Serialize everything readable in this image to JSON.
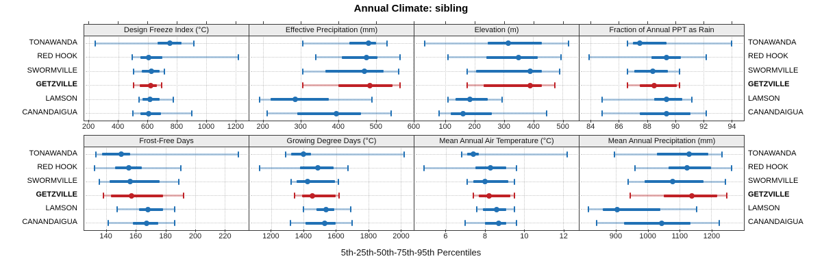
{
  "title": "Annual Climate: sibling",
  "caption": "5th-25th-50th-75th-95th Percentiles",
  "sites": [
    "TONAWANDA",
    "RED HOOK",
    "SWORMVILLE",
    "GETZVILLE",
    "LAMSON",
    "CANANDAIGUA"
  ],
  "highlight_site": "GETZVILLE",
  "percentile_labels": [
    "p5",
    "p25",
    "p50",
    "p75",
    "p95"
  ],
  "colors": {
    "series_blue": "#2171b5",
    "highlight_red": "#c02126",
    "strip_bg": "#ececec",
    "panel_border": "#3c3c3c",
    "gridline": "#c6c6c6"
  },
  "chart_data": [
    {
      "type": "dotplot-interval",
      "title": "Design Freeze Index (°C)",
      "xlim": [
        167,
        1290
      ],
      "ticks": [
        200,
        400,
        600,
        800,
        1000,
        1200
      ],
      "series": [
        {
          "name": "TONAWANDA",
          "percentiles": [
            240,
            670,
            750,
            830,
            915
          ]
        },
        {
          "name": "RED HOOK",
          "percentiles": [
            495,
            550,
            605,
            700,
            1220
          ]
        },
        {
          "name": "SWORMVILLE",
          "percentiles": [
            505,
            560,
            625,
            680,
            715
          ]
        },
        {
          "name": "GETZVILLE",
          "percentiles": [
            505,
            545,
            620,
            665,
            695
          ]
        },
        {
          "name": "LAMSON",
          "percentiles": [
            540,
            565,
            615,
            680,
            775
          ]
        },
        {
          "name": "CANANDAIGUA",
          "percentiles": [
            500,
            550,
            605,
            690,
            900
          ]
        }
      ]
    },
    {
      "type": "dotplot-interval",
      "title": "Effective Precipitation (mm)",
      "xlim": [
        163,
        601
      ],
      "ticks": [
        200,
        300,
        400,
        500,
        600
      ],
      "series": [
        {
          "name": "TONAWANDA",
          "percentiles": [
            305,
            430,
            480,
            500,
            530
          ]
        },
        {
          "name": "RED HOOK",
          "percentiles": [
            340,
            410,
            475,
            505,
            565
          ]
        },
        {
          "name": "SWORMVILLE",
          "percentiles": [
            305,
            365,
            470,
            520,
            560
          ]
        },
        {
          "name": "GETZVILLE",
          "percentiles": [
            305,
            400,
            485,
            545,
            565
          ]
        },
        {
          "name": "LAMSON",
          "percentiles": [
            190,
            220,
            285,
            375,
            490
          ]
        },
        {
          "name": "CANANDAIGUA",
          "percentiles": [
            210,
            290,
            395,
            460,
            540
          ]
        }
      ]
    },
    {
      "type": "dotplot-interval",
      "title": "Elevation (m)",
      "xlim": [
        -5,
        556
      ],
      "ticks": [
        100,
        200,
        300,
        400,
        500
      ],
      "series": [
        {
          "name": "TONAWANDA",
          "percentiles": [
            30,
            245,
            315,
            430,
            520
          ]
        },
        {
          "name": "RED HOOK",
          "percentiles": [
            110,
            240,
            350,
            415,
            495
          ]
        },
        {
          "name": "SWORMVILLE",
          "percentiles": [
            175,
            205,
            390,
            430,
            490
          ]
        },
        {
          "name": "GETZVILLE",
          "percentiles": [
            175,
            230,
            390,
            430,
            475
          ]
        },
        {
          "name": "LAMSON",
          "percentiles": [
            110,
            135,
            185,
            245,
            295
          ]
        },
        {
          "name": "CANANDAIGUA",
          "percentiles": [
            80,
            120,
            160,
            260,
            445
          ]
        }
      ]
    },
    {
      "type": "dotplot-interval",
      "title": "Fraction of Annual PPT as Rain",
      "xlim": [
        83.2,
        94.9
      ],
      "ticks": [
        84,
        86,
        88,
        90,
        92,
        94
      ],
      "series": [
        {
          "name": "TONAWANDA",
          "percentiles": [
            86.6,
            87.0,
            87.5,
            89.4,
            94.0
          ]
        },
        {
          "name": "RED HOOK",
          "percentiles": [
            83.9,
            88.3,
            89.4,
            90.4,
            92.2
          ]
        },
        {
          "name": "SWORMVILLE",
          "percentiles": [
            86.6,
            87.1,
            88.4,
            89.5,
            90.3
          ]
        },
        {
          "name": "GETZVILLE",
          "percentiles": [
            86.6,
            87.5,
            88.5,
            90.1,
            90.3
          ]
        },
        {
          "name": "LAMSON",
          "percentiles": [
            84.8,
            88.5,
            89.4,
            90.5,
            91.2
          ]
        },
        {
          "name": "CANANDAIGUA",
          "percentiles": [
            84.8,
            87.5,
            89.4,
            91.1,
            92.2
          ]
        }
      ]
    },
    {
      "type": "dotplot-interval",
      "title": "Frost-Free Days",
      "xlim": [
        125,
        236
      ],
      "ticks": [
        140,
        160,
        180,
        200,
        220
      ],
      "series": [
        {
          "name": "TONAWANDA",
          "percentiles": [
            133,
            137,
            150,
            156,
            229
          ]
        },
        {
          "name": "RED HOOK",
          "percentiles": [
            132,
            146,
            155,
            164,
            190
          ]
        },
        {
          "name": "SWORMVILLE",
          "percentiles": [
            135,
            142,
            156,
            176,
            189
          ]
        },
        {
          "name": "GETZVILLE",
          "percentiles": [
            138,
            143,
            157,
            178,
            192
          ]
        },
        {
          "name": "LAMSON",
          "percentiles": [
            147,
            162,
            168,
            178,
            186
          ]
        },
        {
          "name": "CANANDAIGUA",
          "percentiles": [
            141,
            158,
            167,
            175,
            186
          ]
        }
      ]
    },
    {
      "type": "dotplot-interval",
      "title": "Growing Degree Days (°C)",
      "xlim": [
        1065,
        2080
      ],
      "ticks": [
        1200,
        1400,
        1600,
        1800,
        2000
      ],
      "series": [
        {
          "name": "TONAWANDA",
          "percentiles": [
            1290,
            1325,
            1400,
            1445,
            2020
          ]
        },
        {
          "name": "RED HOOK",
          "percentiles": [
            1130,
            1380,
            1490,
            1585,
            1675
          ]
        },
        {
          "name": "SWORMVILLE",
          "percentiles": [
            1325,
            1355,
            1425,
            1595,
            1615
          ]
        },
        {
          "name": "GETZVILLE",
          "percentiles": [
            1345,
            1390,
            1455,
            1600,
            1620
          ]
        },
        {
          "name": "LAMSON",
          "percentiles": [
            1400,
            1480,
            1540,
            1590,
            1690
          ]
        },
        {
          "name": "CANANDAIGUA",
          "percentiles": [
            1320,
            1410,
            1530,
            1600,
            1700
          ]
        }
      ]
    },
    {
      "type": "dotplot-interval",
      "title": "Mean Annual Air Temperature (°C)",
      "xlim": [
        4.4,
        12.8
      ],
      "ticks": [
        6,
        8,
        10,
        12
      ],
      "series": [
        {
          "name": "TONAWANDA",
          "percentiles": [
            6.8,
            7.1,
            7.4,
            7.7,
            12.2
          ]
        },
        {
          "name": "RED HOOK",
          "percentiles": [
            4.9,
            7.5,
            8.3,
            9.1,
            9.6
          ]
        },
        {
          "name": "SWORMVILLE",
          "percentiles": [
            7.1,
            7.4,
            8.0,
            9.2,
            9.5
          ]
        },
        {
          "name": "GETZVILLE",
          "percentiles": [
            7.4,
            7.7,
            8.2,
            9.3,
            9.5
          ]
        },
        {
          "name": "LAMSON",
          "percentiles": [
            7.6,
            7.9,
            8.6,
            9.1,
            9.5
          ]
        },
        {
          "name": "CANANDAIGUA",
          "percentiles": [
            7.0,
            8.0,
            8.7,
            9.1,
            9.6
          ]
        }
      ]
    },
    {
      "type": "dotplot-interval",
      "title": "Mean Annual Precipitation (mm)",
      "xlim": [
        786,
        1303
      ],
      "ticks": [
        900,
        1000,
        1100,
        1200
      ],
      "series": [
        {
          "name": "TONAWANDA",
          "percentiles": [
            895,
            1030,
            1130,
            1190,
            1235
          ]
        },
        {
          "name": "RED HOOK",
          "percentiles": [
            960,
            1065,
            1125,
            1200,
            1265
          ]
        },
        {
          "name": "SWORMVILLE",
          "percentiles": [
            940,
            990,
            1080,
            1175,
            1245
          ]
        },
        {
          "name": "GETZVILLE",
          "percentiles": [
            945,
            1050,
            1140,
            1220,
            1250
          ]
        },
        {
          "name": "LAMSON",
          "percentiles": [
            815,
            860,
            905,
            1040,
            1155
          ]
        },
        {
          "name": "CANANDAIGUA",
          "percentiles": [
            840,
            925,
            1045,
            1135,
            1225
          ]
        }
      ]
    }
  ]
}
